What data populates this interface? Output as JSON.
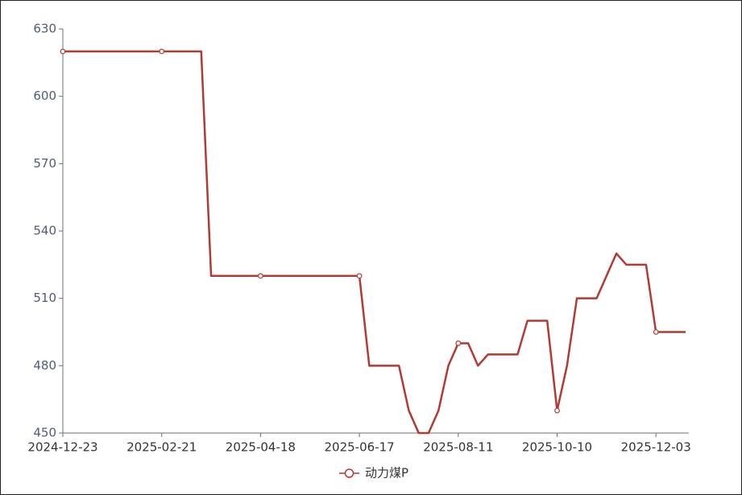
{
  "chart_data": {
    "type": "line",
    "categories": [
      "2024-12-23",
      null,
      null,
      null,
      null,
      null,
      null,
      null,
      null,
      null,
      "2025-02-21",
      null,
      null,
      null,
      null,
      null,
      null,
      null,
      null,
      null,
      "2025-04-18",
      null,
      null,
      null,
      null,
      null,
      null,
      null,
      null,
      null,
      "2025-06-17",
      null,
      null,
      null,
      null,
      null,
      null,
      null,
      null,
      null,
      "2025-08-11",
      null,
      null,
      null,
      null,
      null,
      null,
      null,
      null,
      null,
      "2025-10-10",
      null,
      null,
      null,
      null,
      null,
      null,
      null,
      null,
      null,
      "2025-12-03",
      null,
      null,
      null
    ],
    "series": [
      {
        "name": "动力煤P",
        "color": "#b23a33",
        "values": [
          620,
          620,
          620,
          620,
          620,
          620,
          620,
          620,
          620,
          620,
          620,
          620,
          620,
          620,
          620,
          520,
          520,
          520,
          520,
          520,
          520,
          520,
          520,
          520,
          520,
          520,
          520,
          520,
          520,
          520,
          520,
          480,
          480,
          480,
          480,
          460,
          450,
          450,
          460,
          480,
          490,
          490,
          480,
          485,
          485,
          485,
          485,
          500,
          500,
          500,
          460,
          480,
          510,
          510,
          510,
          520,
          530,
          525,
          525,
          525,
          495,
          495,
          495,
          495
        ]
      }
    ],
    "ylim": [
      450,
      630
    ],
    "yticks": [
      450,
      480,
      510,
      540,
      570,
      600,
      630
    ],
    "grid": false
  }
}
